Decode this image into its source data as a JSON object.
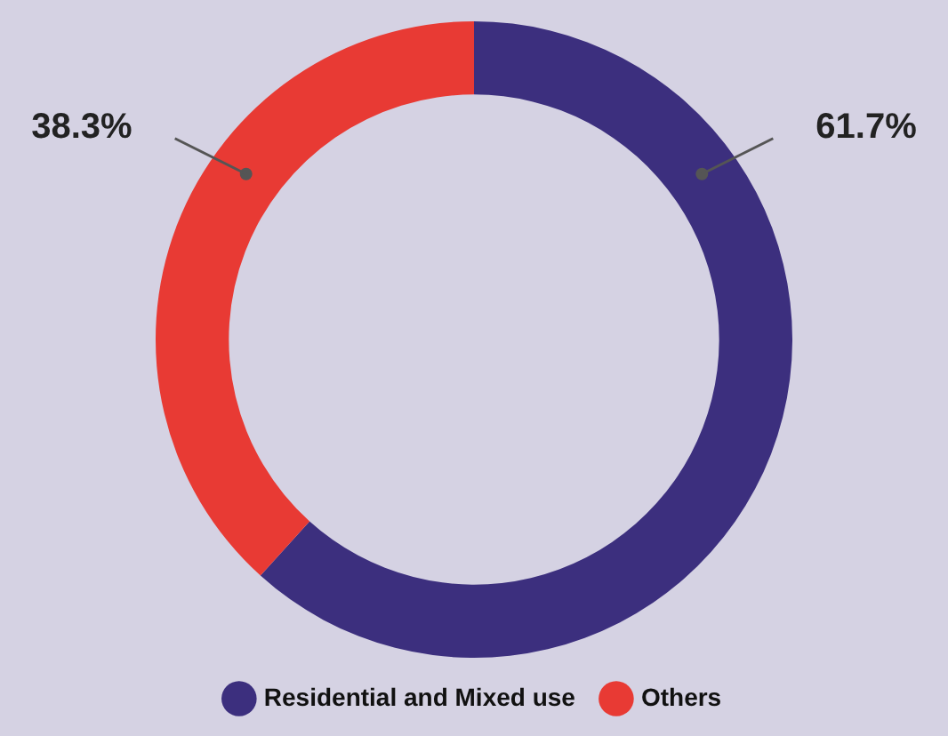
{
  "chart_data": {
    "type": "donut",
    "categories": [
      "Residential and Mixed use",
      "Others"
    ],
    "values": [
      61.7,
      38.3
    ],
    "colors": [
      "#3c2f7e",
      "#e83a34"
    ],
    "value_labels": [
      "61.7%",
      "38.3%"
    ],
    "legend": "bottom"
  }
}
